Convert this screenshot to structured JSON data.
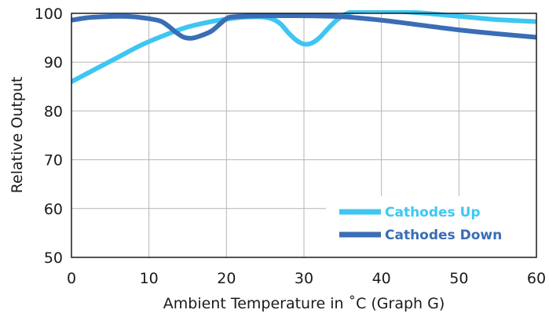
{
  "chart_data": {
    "type": "line",
    "title": "",
    "xlabel": "Ambient Temperature in ˚C  (Graph G)",
    "ylabel": "Relative Output",
    "xlim": [
      0,
      60
    ],
    "ylim": [
      50,
      100
    ],
    "x_ticks": [
      0,
      10,
      20,
      30,
      40,
      50,
      60
    ],
    "y_ticks": [
      50,
      60,
      70,
      80,
      90,
      100
    ],
    "grid": true,
    "legend_position": "bottom-right",
    "series": [
      {
        "name": "Cathodes Up",
        "color": "#3ec6f2",
        "points": [
          [
            0,
            86
          ],
          [
            3,
            88.5
          ],
          [
            6,
            91
          ],
          [
            9,
            93.5
          ],
          [
            12,
            95.5
          ],
          [
            15,
            97.2
          ],
          [
            18,
            98.3
          ],
          [
            20,
            98.8
          ],
          [
            22,
            99.2
          ],
          [
            24,
            99.3
          ],
          [
            25,
            99.2
          ],
          [
            26,
            98.8
          ],
          [
            27,
            97.8
          ],
          [
            28,
            96
          ],
          [
            29,
            94.5
          ],
          [
            30,
            93.7
          ],
          [
            31,
            93.9
          ],
          [
            32,
            95
          ],
          [
            33,
            96.7
          ],
          [
            34,
            98.3
          ],
          [
            35,
            99.5
          ],
          [
            36,
            100.2
          ],
          [
            38,
            100.6
          ],
          [
            40,
            100.6
          ],
          [
            45,
            100.1
          ],
          [
            50,
            99.4
          ],
          [
            55,
            98.7
          ],
          [
            60,
            98.3
          ]
        ]
      },
      {
        "name": "Cathodes Down",
        "color": "#3a6db5",
        "points": [
          [
            0,
            98.6
          ],
          [
            2,
            99.1
          ],
          [
            4,
            99.3
          ],
          [
            6,
            99.4
          ],
          [
            8,
            99.3
          ],
          [
            10,
            98.9
          ],
          [
            11.5,
            98.4
          ],
          [
            12.5,
            97.4
          ],
          [
            13.5,
            96.1
          ],
          [
            14.5,
            95.1
          ],
          [
            15.5,
            94.9
          ],
          [
            16.5,
            95.3
          ],
          [
            18,
            96.3
          ],
          [
            19,
            97.6
          ],
          [
            20,
            98.9
          ],
          [
            21,
            99.3
          ],
          [
            25,
            99.5
          ],
          [
            30,
            99.5
          ],
          [
            35,
            99.3
          ],
          [
            40,
            98.6
          ],
          [
            45,
            97.6
          ],
          [
            50,
            96.6
          ],
          [
            55,
            95.8
          ],
          [
            60,
            95.1
          ]
        ]
      }
    ]
  }
}
